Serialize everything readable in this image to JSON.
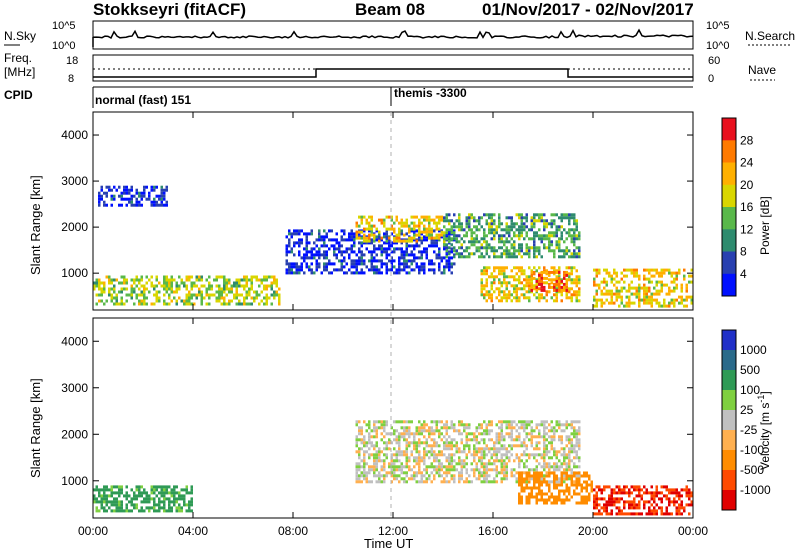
{
  "header": {
    "title": "Stokkseyri (fitACF)",
    "beam": "Beam 08",
    "dates": "01/Nov/2017 - 02/Nov/2017"
  },
  "top_panels": {
    "nsky_label": "N.Sky",
    "nsky_ticks": [
      "10^5",
      "10^0"
    ],
    "nsearch_label": "N.Search",
    "nsearch_ticks": [
      "10^5",
      "10^0"
    ],
    "freq_label_1": "Freq.",
    "freq_label_2": "[MHz]",
    "freq_ticks": [
      "18",
      "8"
    ],
    "nave_label": "Nave",
    "nave_ticks": [
      "60",
      "0"
    ],
    "cpid_label": "CPID",
    "cpid_entries": [
      {
        "name": "normal (fast) 151",
        "start_hour": 0
      },
      {
        "name": "themis -3300",
        "start_hour": 12
      }
    ]
  },
  "axes": {
    "xlabel": "Time UT",
    "x_ticks": [
      "00:00",
      "04:00",
      "08:00",
      "12:00",
      "16:00",
      "20:00",
      "00:00"
    ],
    "ylabel": "Slant Range [km]",
    "y_ticks": [
      "1000",
      "2000",
      "3000",
      "4000"
    ],
    "ylim": [
      200,
      4500
    ],
    "xlim_hours": [
      0,
      24
    ]
  },
  "colorbars": {
    "power": {
      "label": "Power [dB]",
      "ticks": [
        "28",
        "24",
        "20",
        "16",
        "12",
        "8",
        "4"
      ],
      "colors": [
        "#e8101e",
        "#ff7a00",
        "#ffb000",
        "#d9d600",
        "#59b84a",
        "#2e8b6e",
        "#2840b0",
        "#0010ff"
      ]
    },
    "velocity": {
      "label": "Velocity [m s",
      "label_sup": "-1",
      "label_end": "]",
      "ticks": [
        "1000",
        "500",
        "100",
        "25",
        "-25",
        "-100",
        "-500",
        "-1000"
      ],
      "colors": [
        "#2030c8",
        "#2a6a8a",
        "#2f9a55",
        "#7fd040",
        "#c0c0c0",
        "#ffb050",
        "#ff8c00",
        "#ff4a00",
        "#e00000"
      ]
    }
  },
  "chart_data": [
    {
      "type": "heatmap",
      "title": "Power",
      "xlabel": "Time UT",
      "ylabel": "Slant Range [km]",
      "ylim": [
        200,
        4500
      ],
      "regions": [
        {
          "t": [
            0,
            7.5
          ],
          "r": [
            350,
            950
          ],
          "value_db": 18
        },
        {
          "t": [
            0.2,
            3
          ],
          "r": [
            2500,
            2900
          ],
          "value_db": 6
        },
        {
          "t": [
            7.7,
            14.5
          ],
          "r": [
            1000,
            1950
          ],
          "value_db": 6
        },
        {
          "t": [
            10.5,
            14
          ],
          "r": [
            1700,
            2250
          ],
          "value_db": 22
        },
        {
          "t": [
            14,
            19.5
          ],
          "r": [
            1350,
            2300
          ],
          "value_db": 14
        },
        {
          "t": [
            15.5,
            19.5
          ],
          "r": [
            400,
            1150
          ],
          "value_db": 22
        },
        {
          "t": [
            17.5,
            19
          ],
          "r": [
            600,
            1050
          ],
          "value_db": 28
        },
        {
          "t": [
            20,
            24
          ],
          "r": [
            300,
            1100
          ],
          "value_db": 22
        }
      ]
    },
    {
      "type": "heatmap",
      "title": "Velocity",
      "xlabel": "Time UT",
      "ylabel": "Slant Range [km]",
      "ylim": [
        200,
        4500
      ],
      "regions": [
        {
          "t": [
            0,
            4
          ],
          "r": [
            350,
            900
          ],
          "value_ms": 100
        },
        {
          "t": [
            10.5,
            19.5
          ],
          "r": [
            1000,
            2300
          ],
          "value_ms": 0
        },
        {
          "t": [
            17,
            20
          ],
          "r": [
            500,
            1200
          ],
          "value_ms": -300
        },
        {
          "t": [
            20,
            24
          ],
          "r": [
            300,
            900
          ],
          "value_ms": -800
        }
      ]
    }
  ]
}
